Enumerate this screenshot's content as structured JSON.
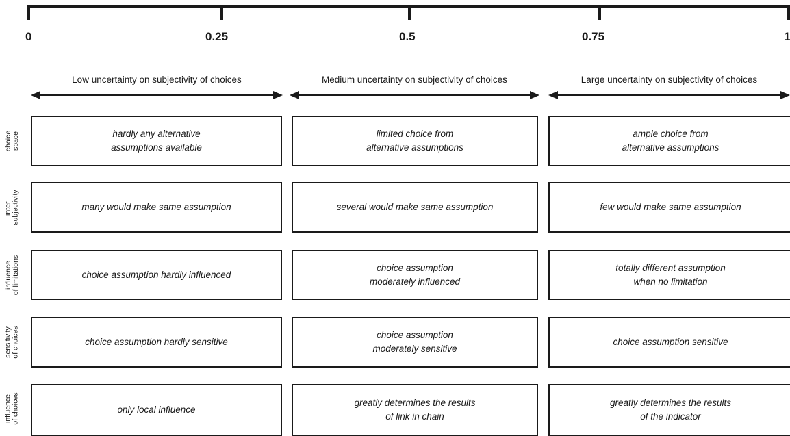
{
  "scale": {
    "ticks": [
      "0",
      "0.25",
      "0.5",
      "0.75",
      "1"
    ]
  },
  "levels": [
    "Low uncertainty on subjectivity of choices",
    "Medium uncertainty on subjectivity of choices",
    "Large uncertainty on subjectivity of choices"
  ],
  "rows": [
    {
      "label": "choice\nspace",
      "cells": [
        "hardly any alternative\nassumptions available",
        "limited choice from\nalternative assumptions",
        "ample choice from\nalternative assumptions"
      ]
    },
    {
      "label": "inter-\nsubjectivity",
      "cells": [
        "many would make same assumption",
        "several would make same assumption",
        "few would make same assumption"
      ]
    },
    {
      "label": "influence\nof limitations",
      "cells": [
        "choice assumption hardly influenced",
        "choice assumption\nmoderately influenced",
        "totally different assumption\nwhen no limitation"
      ]
    },
    {
      "label": "sensitivity\nof choices",
      "cells": [
        "choice assumption hardly sensitive",
        "choice assumption\nmoderately sensitive",
        "choice assumption sensitive"
      ]
    },
    {
      "label": "influence\nof choices",
      "cells": [
        "only local influence",
        "greatly determines the results\nof link in chain",
        "greatly determines the results\nof the indicator"
      ]
    }
  ]
}
